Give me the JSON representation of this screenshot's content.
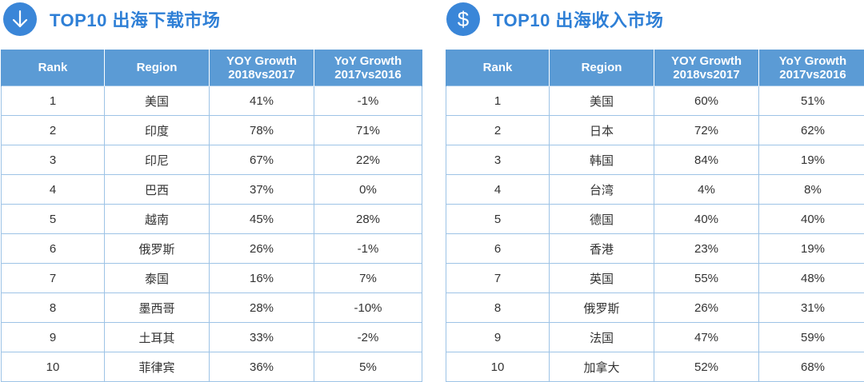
{
  "download": {
    "icon": "arrow-down-icon",
    "title": "TOP10 出海下载市场",
    "headers": {
      "rank": "Rank",
      "region": "Region",
      "g1_line1": "YOY Growth",
      "g1_line2": "2018vs2017",
      "g2_line1": "YoY Growth",
      "g2_line2": "2017vs2016"
    },
    "rows": [
      {
        "rank": "1",
        "region": "美国",
        "g1": "41%",
        "g2": "-1%"
      },
      {
        "rank": "2",
        "region": "印度",
        "g1": "78%",
        "g2": "71%"
      },
      {
        "rank": "3",
        "region": "印尼",
        "g1": "67%",
        "g2": "22%"
      },
      {
        "rank": "4",
        "region": "巴西",
        "g1": "37%",
        "g2": "0%"
      },
      {
        "rank": "5",
        "region": "越南",
        "g1": "45%",
        "g2": "28%"
      },
      {
        "rank": "6",
        "region": "俄罗斯",
        "g1": "26%",
        "g2": "-1%"
      },
      {
        "rank": "7",
        "region": "泰国",
        "g1": "16%",
        "g2": "7%"
      },
      {
        "rank": "8",
        "region": "墨西哥",
        "g1": "28%",
        "g2": "-10%"
      },
      {
        "rank": "9",
        "region": "土耳其",
        "g1": "33%",
        "g2": "-2%"
      },
      {
        "rank": "10",
        "region": "菲律宾",
        "g1": "36%",
        "g2": "5%"
      }
    ]
  },
  "revenue": {
    "icon": "dollar-icon",
    "title": "TOP10 出海收入市场",
    "headers": {
      "rank": "Rank",
      "region": "Region",
      "g1_line1": "YOY Growth",
      "g1_line2": "2018vs2017",
      "g2_line1": "YoY Growth",
      "g2_line2": "2017vs2016"
    },
    "rows": [
      {
        "rank": "1",
        "region": "美国",
        "g1": "60%",
        "g2": "51%"
      },
      {
        "rank": "2",
        "region": "日本",
        "g1": "72%",
        "g2": "62%"
      },
      {
        "rank": "3",
        "region": "韩国",
        "g1": "84%",
        "g2": "19%"
      },
      {
        "rank": "4",
        "region": "台湾",
        "g1": "4%",
        "g2": "8%"
      },
      {
        "rank": "5",
        "region": "德国",
        "g1": "40%",
        "g2": "40%"
      },
      {
        "rank": "6",
        "region": "香港",
        "g1": "23%",
        "g2": "19%"
      },
      {
        "rank": "7",
        "region": "英国",
        "g1": "55%",
        "g2": "48%"
      },
      {
        "rank": "8",
        "region": "俄罗斯",
        "g1": "26%",
        "g2": "31%"
      },
      {
        "rank": "9",
        "region": "法国",
        "g1": "47%",
        "g2": "59%"
      },
      {
        "rank": "10",
        "region": "加拿大",
        "g1": "52%",
        "g2": "68%"
      }
    ]
  },
  "colors": {
    "accent": "#2e7fd6",
    "header_bg": "#5b9bd5",
    "grid": "#9dc3e6"
  }
}
